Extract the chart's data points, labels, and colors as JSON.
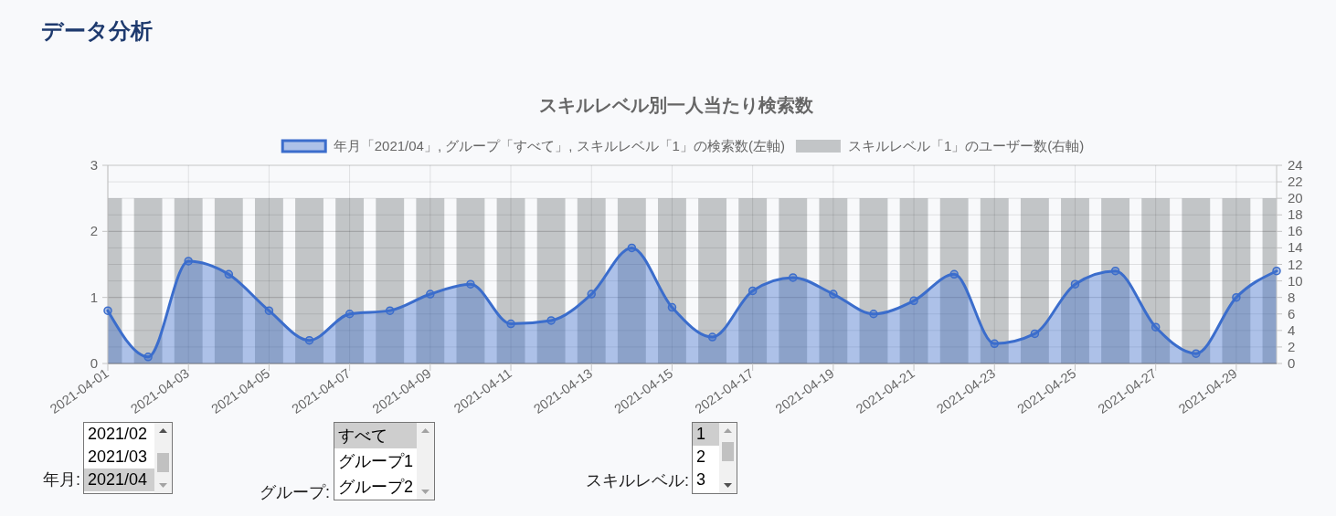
{
  "chart_data": {
    "type": "area",
    "title": "データ分析",
    "subtitle": "スキルレベル別一人当たり検索数",
    "x": [
      "2021-04-01",
      "2021-04-02",
      "2021-04-03",
      "2021-04-04",
      "2021-04-05",
      "2021-04-06",
      "2021-04-07",
      "2021-04-08",
      "2021-04-09",
      "2021-04-10",
      "2021-04-11",
      "2021-04-12",
      "2021-04-13",
      "2021-04-14",
      "2021-04-15",
      "2021-04-16",
      "2021-04-17",
      "2021-04-18",
      "2021-04-19",
      "2021-04-20",
      "2021-04-21",
      "2021-04-22",
      "2021-04-23",
      "2021-04-24",
      "2021-04-25",
      "2021-04-26",
      "2021-04-27",
      "2021-04-28",
      "2021-04-29",
      "2021-04-30"
    ],
    "xlim": [
      "2021-04-01",
      "2021-04-30"
    ],
    "xticks": [
      "2021-04-01",
      "2021-04-03",
      "2021-04-05",
      "2021-04-07",
      "2021-04-09",
      "2021-04-11",
      "2021-04-13",
      "2021-04-15",
      "2021-04-17",
      "2021-04-19",
      "2021-04-21",
      "2021-04-23",
      "2021-04-25",
      "2021-04-27",
      "2021-04-29"
    ],
    "series": [
      {
        "name": "年月「2021/04」, グループ「すべて」, スキルレベル「1」の検索数(左軸)",
        "color": "#3b6dcc",
        "values": [
          0.8,
          0.1,
          1.55,
          1.35,
          0.8,
          0.35,
          0.75,
          0.8,
          1.05,
          1.2,
          0.6,
          0.65,
          1.05,
          1.75,
          0.85,
          0.4,
          1.1,
          1.3,
          1.05,
          0.75,
          0.95,
          1.35,
          0.3,
          0.45,
          1.2,
          1.4,
          0.55,
          0.15,
          1.0,
          1.4
        ]
      },
      {
        "name": "スキルレベル「1」のユーザー数(右軸)",
        "type": "bar",
        "axis": "y2",
        "color": "#c2c5c7",
        "values": [
          20,
          20,
          20,
          20,
          20,
          20,
          20,
          20,
          20,
          20,
          20,
          20,
          20,
          20,
          20,
          20,
          20,
          20,
          20,
          20,
          20,
          20,
          20,
          20,
          20,
          20,
          20,
          20,
          20,
          20
        ]
      }
    ],
    "ylim": [
      0,
      3
    ],
    "yticks": [
      0,
      1,
      2,
      3
    ],
    "y2lim": [
      0,
      24
    ],
    "y2ticks": [
      0,
      2,
      4,
      6,
      8,
      10,
      12,
      14,
      16,
      18,
      20,
      22,
      24
    ],
    "grid": true,
    "legend": "top",
    "marker": "circle",
    "annotations": [
      "年月:",
      "2021/02",
      "2021/03",
      "2021/04",
      "グループ:",
      "すべて",
      "グループ1",
      "グループ2",
      "スキルレベル:",
      "1",
      "2",
      "3"
    ]
  }
}
